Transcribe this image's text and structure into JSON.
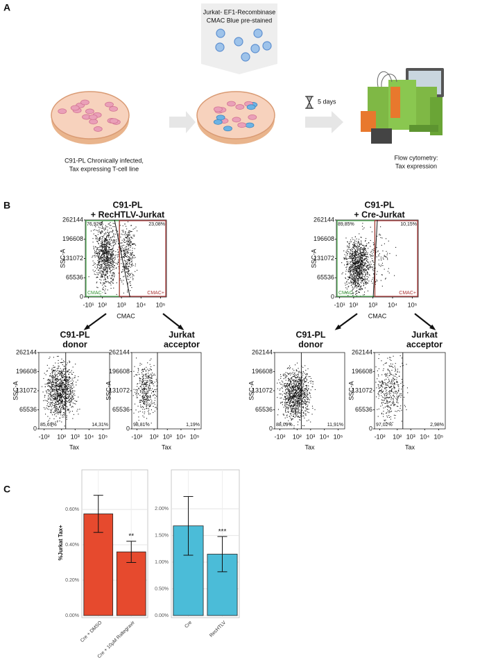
{
  "panel_a": {
    "label": "A",
    "cells_caption": [
      "Jurkat- EF1-Recombinase",
      "CMAC Blue pre-stained"
    ],
    "incubation": "5 days",
    "donor_caption": [
      "C91-PL Chronically infected,",
      "Tax expressing T-cell line"
    ],
    "readout_caption": [
      "Flow cytometry:",
      "Tax expression"
    ]
  },
  "panel_b": {
    "label": "B",
    "yticks": [
      0,
      65536,
      131072,
      196608,
      262144
    ],
    "ylim": [
      0,
      262144
    ],
    "gate_xlim": [
      -30,
      200000
    ],
    "gate_xticks": [
      {
        "value": -10,
        "label": "-10¹"
      },
      {
        "value": 100,
        "label": "10²"
      },
      {
        "value": 1000,
        "label": "10³"
      },
      {
        "value": 10000,
        "label": "10⁴"
      },
      {
        "value": 100000,
        "label": "10⁵"
      }
    ],
    "tax_xlim": [
      -250,
      300000
    ],
    "tax_xticks": [
      {
        "value": -100,
        "label": "-10²"
      },
      {
        "value": 100,
        "label": "10²"
      },
      {
        "value": 1000,
        "label": "10³"
      },
      {
        "value": 10000,
        "label": "10⁴"
      },
      {
        "value": 100000,
        "label": "10⁵"
      }
    ],
    "experiments": [
      {
        "title": [
          "C91-PL",
          "+ RecHTLV-Jurkat"
        ],
        "gate_plot": {
          "y_label": "SSC-A",
          "x_label": "CMAC",
          "gates": [
            "CMAC-",
            "CMAC+"
          ],
          "percents": [
            "76,92%",
            "23,08%"
          ]
        },
        "subplots": [
          {
            "title": [
              "C91-PL",
              "donor"
            ],
            "y_label": "SSC-A",
            "x_label": "Tax",
            "percents": [
              "85,69%",
              "14,31%"
            ]
          },
          {
            "title": [
              "Jurkat",
              "acceptor"
            ],
            "y_label": "SSC-A",
            "x_label": "Tax",
            "percents": [
              "98,81%",
              "1,19%"
            ]
          }
        ]
      },
      {
        "title": [
          "C91-PL",
          "+ Cre-Jurkat"
        ],
        "gate_plot": {
          "y_label": "SSC-A",
          "x_label": "CMAC",
          "gates": [
            "CMAC-",
            "CMAC+"
          ],
          "percents": [
            "89,85%",
            "10,15%"
          ]
        },
        "subplots": [
          {
            "title": [
              "C91-PL",
              "donor"
            ],
            "y_label": "SSC-A",
            "x_label": "Tax",
            "percents": [
              "88,09%",
              "11,91%"
            ]
          },
          {
            "title": [
              "Jurkat",
              "acceptor"
            ],
            "y_label": "SSC-A",
            "x_label": "Tax",
            "percents": [
              "97,02%",
              "2,98%"
            ]
          }
        ]
      }
    ]
  },
  "panel_c": {
    "label": "C",
    "y_label": "%Jurkat Tax+"
  },
  "chart_data": [
    {
      "type": "bar",
      "categories": [
        "Cre + DMSO",
        "Cre + 10µM Raltegravir"
      ],
      "values": [
        0.575,
        0.36
      ],
      "errors": [
        0.105,
        0.06
      ],
      "significance": [
        null,
        "**"
      ],
      "color": "#e64a2e",
      "ylim": [
        -0.012,
        0.824
      ],
      "yticks": [
        {
          "value": 0,
          "label": "0.00%"
        },
        {
          "value": 0.2,
          "label": "0.20%"
        },
        {
          "value": 0.4,
          "label": "0.40%"
        },
        {
          "value": 0.6,
          "label": "0.60%"
        }
      ],
      "grid": true
    },
    {
      "type": "bar",
      "categories": [
        "Cre",
        "RecHTLV"
      ],
      "values": [
        1.68,
        1.15
      ],
      "errors": [
        0.55,
        0.33
      ],
      "significance": [
        null,
        "***"
      ],
      "color": "#4bbcd8",
      "ylim": [
        -0.04,
        2.73
      ],
      "yticks": [
        {
          "value": 0,
          "label": "0.00%"
        },
        {
          "value": 0.5,
          "label": "0.50%"
        },
        {
          "value": 1,
          "label": "1.00%"
        },
        {
          "value": 1.5,
          "label": "1.50%"
        },
        {
          "value": 2,
          "label": "2.00%"
        }
      ],
      "grid": true
    }
  ]
}
